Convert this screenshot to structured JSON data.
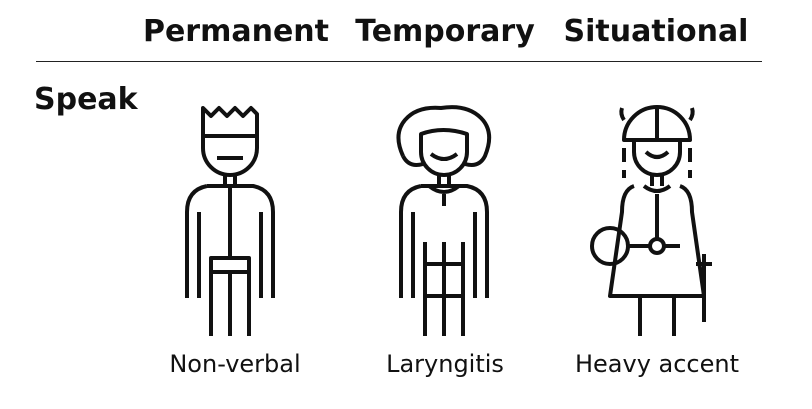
{
  "columns": [
    {
      "header": "Permanent",
      "caption": "Non-verbal",
      "icon": "person-spiky-hair-icon"
    },
    {
      "header": "Temporary",
      "caption": "Laryngitis",
      "icon": "person-curly-hair-icon"
    },
    {
      "header": "Situational",
      "caption": "Heavy accent",
      "icon": "person-viking-helmet-icon"
    }
  ],
  "row_label": "Speak",
  "colors": {
    "stroke": "#111111",
    "background": "#ffffff"
  }
}
